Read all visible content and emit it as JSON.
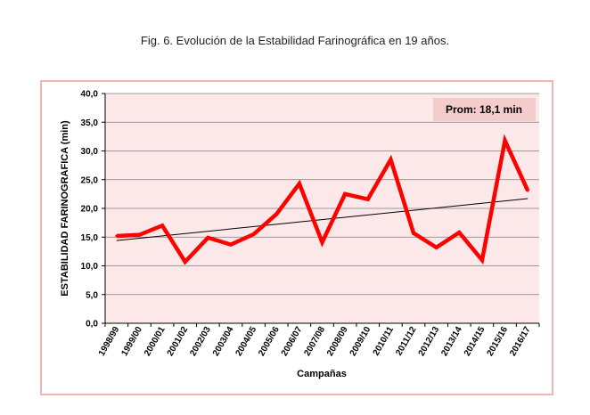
{
  "caption": "Fig. 6. Evolución de la Estabilidad Farinográfica en 19 años.",
  "chart_data": {
    "type": "line",
    "title": "",
    "xlabel": "Campañas",
    "ylabel": "ESTABILIDAD FARINOGRAFICA  (min)",
    "ylim": [
      0,
      40
    ],
    "y_ticks": [
      "0,0",
      "5,0",
      "10,0",
      "15,0",
      "20,0",
      "25,0",
      "30,0",
      "35,0",
      "40,0"
    ],
    "grid": true,
    "legend": "none",
    "categories": [
      "1998/99",
      "1999/00",
      "2000/01",
      "2001/02",
      "2002/03",
      "2003/04",
      "2004/05",
      "2005/06",
      "2006/07",
      "2007/08",
      "2008/09",
      "2009/10",
      "2010/11",
      "2011/12",
      "2012/13",
      "2013/14",
      "2014/15",
      "2015/16",
      "2016/17"
    ],
    "series": [
      {
        "values": [
          15.2,
          15.4,
          17.0,
          10.7,
          14.9,
          13.7,
          15.5,
          19.0,
          24.3,
          14.1,
          22.5,
          21.6,
          28.5,
          15.7,
          13.2,
          15.8,
          11.0,
          31.8,
          23.1
        ],
        "color": "#ff0000"
      }
    ],
    "trendline": {
      "start": 14.4,
      "end": 21.7,
      "color": "#000000"
    },
    "annotation": {
      "text": "Prom: 18,1 min",
      "position": "top-right"
    },
    "colors": {
      "plot_bg": "#fce8e8",
      "grid": "#808080",
      "frame": "#f2b3b3",
      "note_bg": "#f5cccc"
    }
  }
}
